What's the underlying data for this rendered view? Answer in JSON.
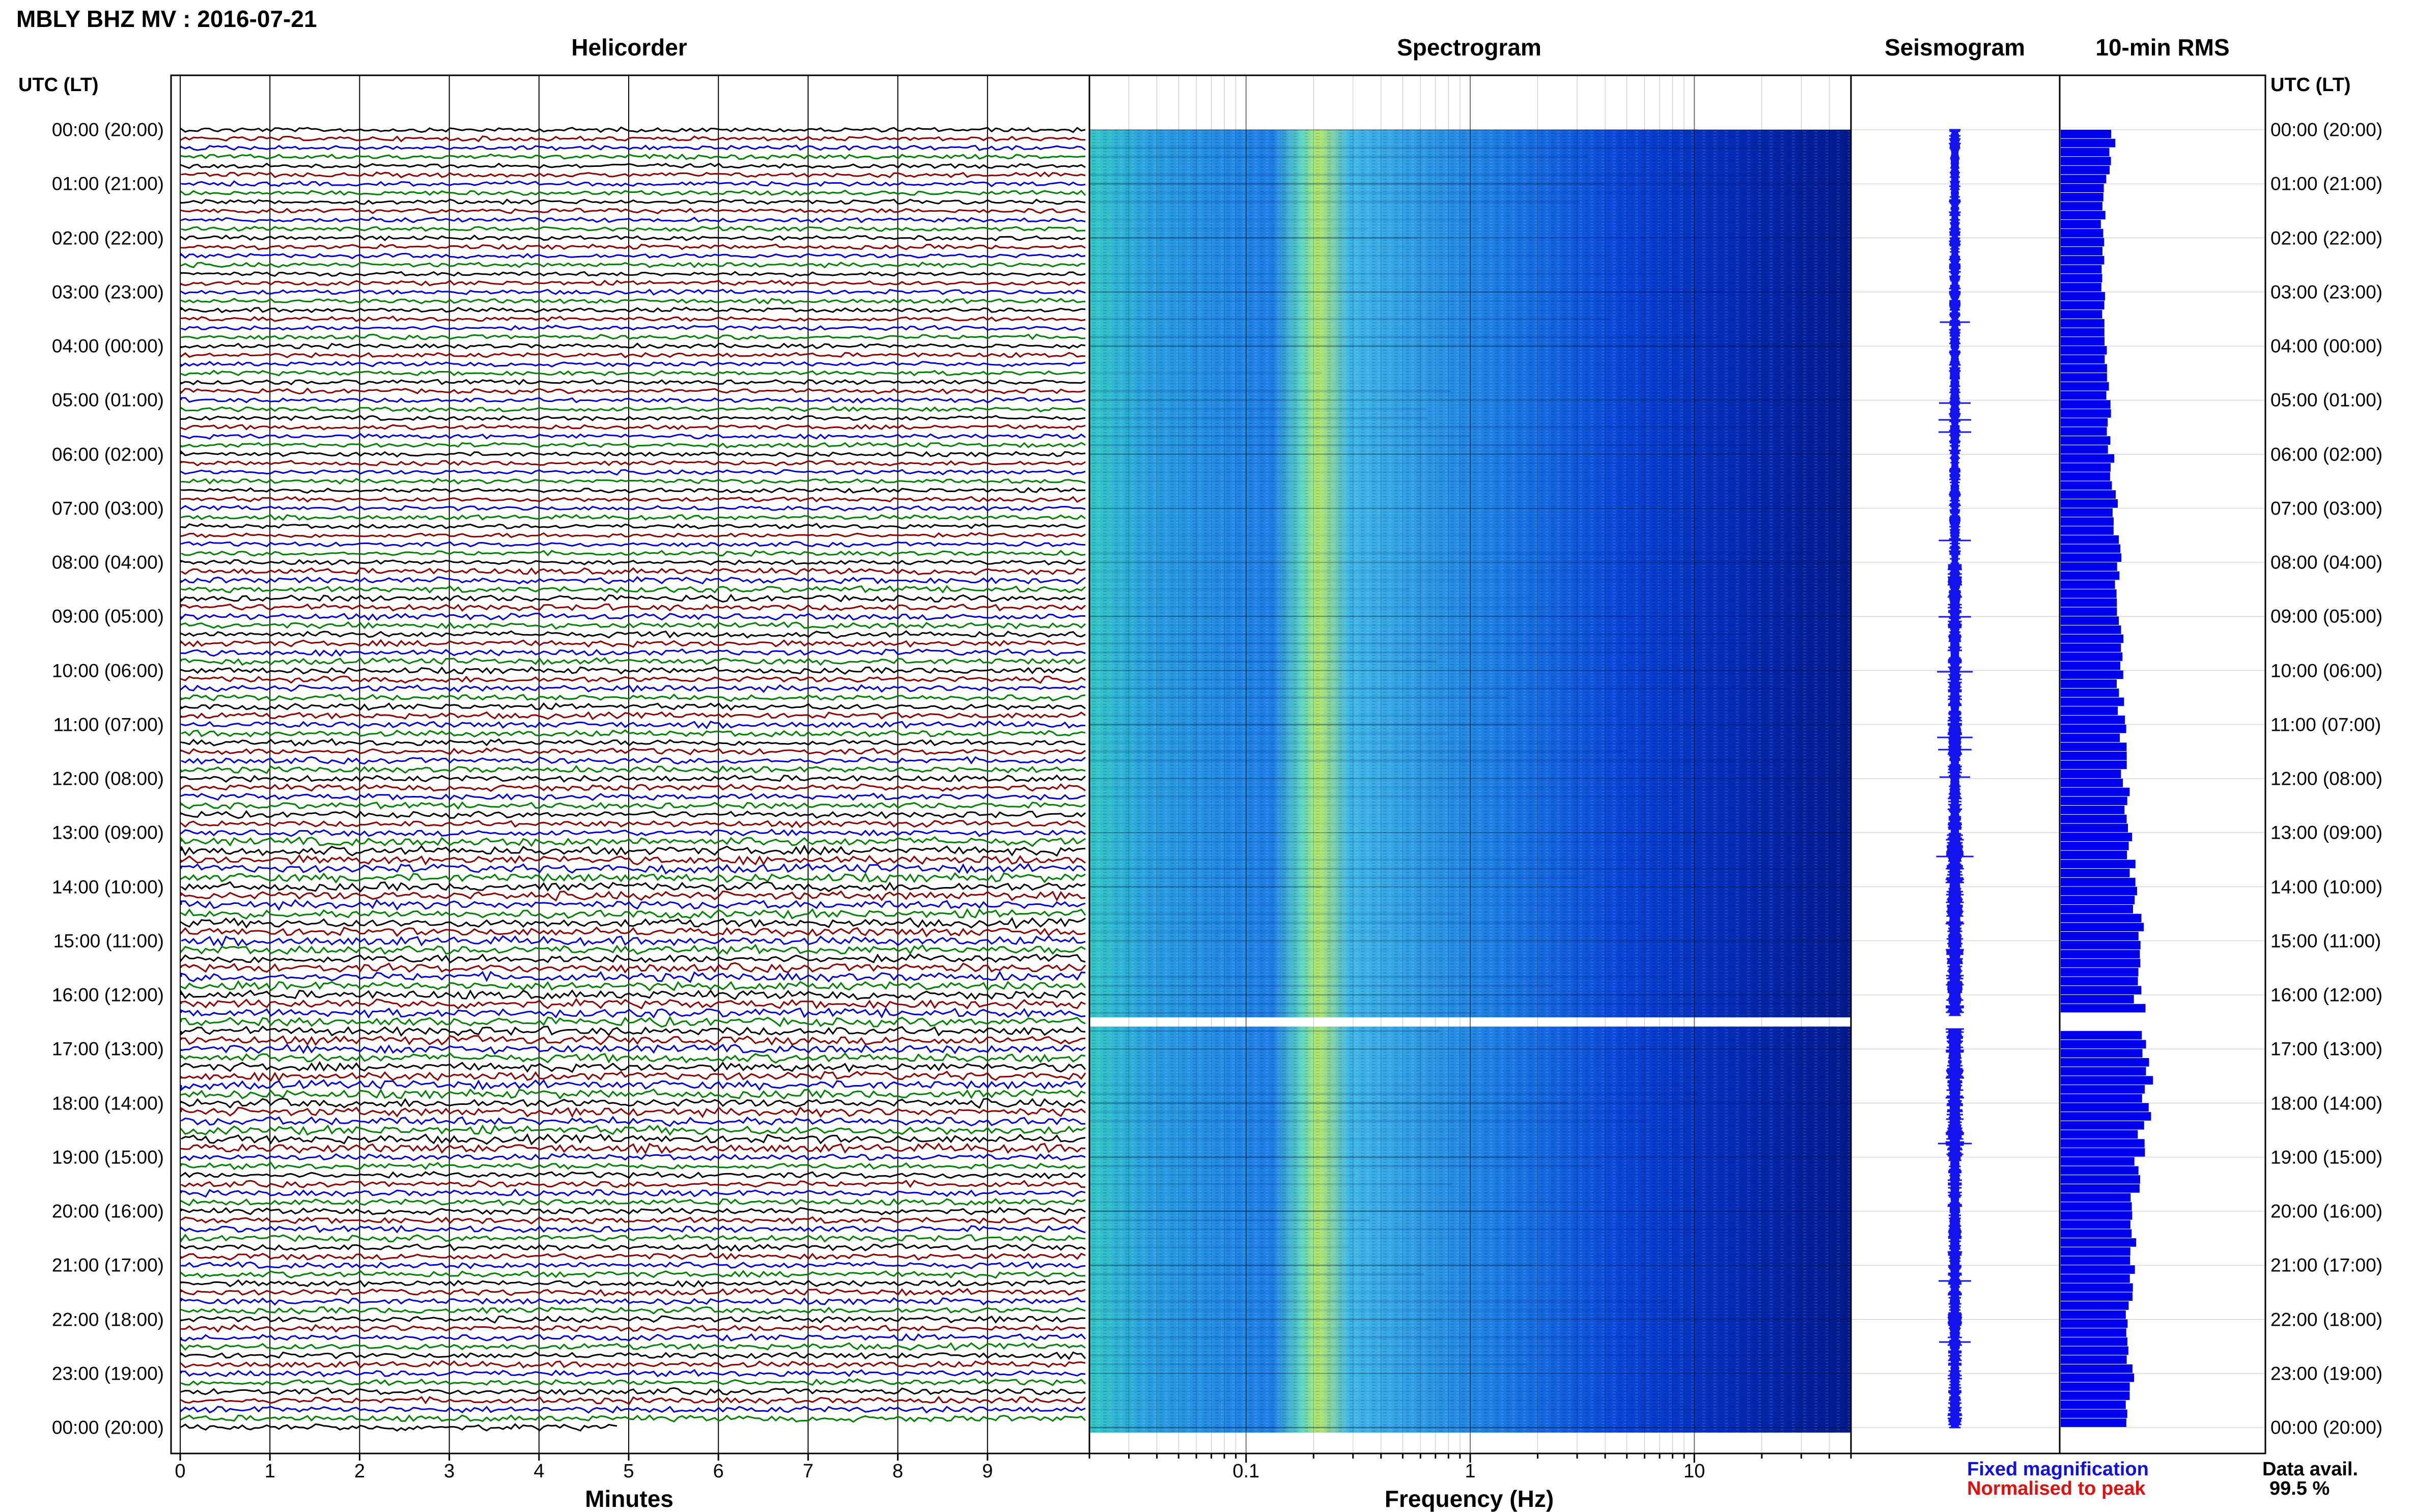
{
  "page": {
    "title": "MBLY BHZ MV : 2016-07-21"
  },
  "panels": {
    "helicorder": "Helicorder",
    "spectrogram": "Spectrogram",
    "seismogram": "Seismogram",
    "rms": "10-min RMS"
  },
  "axes": {
    "left_header": "UTC (LT)",
    "right_header": "UTC (LT)",
    "minutes_label": "Minutes",
    "frequency_label": "Frequency (Hz)",
    "minute_ticks": [
      "0",
      "1",
      "2",
      "3",
      "4",
      "5",
      "6",
      "7",
      "8",
      "9"
    ],
    "frequency_ticks": [
      "0.1",
      "1",
      "10"
    ]
  },
  "time_labels": [
    "00:00 (20:00)",
    "01:00 (21:00)",
    "02:00 (22:00)",
    "03:00 (23:00)",
    "04:00 (00:00)",
    "05:00 (01:00)",
    "06:00 (02:00)",
    "07:00 (03:00)",
    "08:00 (04:00)",
    "09:00 (05:00)",
    "10:00 (06:00)",
    "11:00 (07:00)",
    "12:00 (08:00)",
    "13:00 (09:00)",
    "14:00 (10:00)",
    "15:00 (11:00)",
    "16:00 (12:00)",
    "17:00 (13:00)",
    "18:00 (14:00)",
    "19:00 (15:00)",
    "20:00 (16:00)",
    "21:00 (17:00)",
    "22:00 (18:00)",
    "23:00 (19:00)",
    "00:00 (20:00)"
  ],
  "legend": {
    "fixed": "Fixed magnification",
    "normalised": "Normalised to peak",
    "data_avail_label": "Data avail.",
    "data_avail_value": "99.5 %"
  },
  "colors": {
    "fixed": "#1010e0",
    "normalised": "#e01010",
    "trace_cycle": [
      "#000000",
      "#8b0000",
      "#0000cd",
      "#008000"
    ],
    "rms_bar": "#0000ee"
  },
  "chart_data": {
    "type": "heatmap",
    "minutes_range": [
      0,
      10
    ],
    "frequency_range_hz": [
      0.02,
      50
    ],
    "frequency_scale": "log",
    "hours_range": [
      0,
      24
    ],
    "helicorder_rows_per_hour": 6,
    "data_gap_utc": "16:30",
    "rms_relative_by_hour": [
      0.26,
      0.22,
      0.2,
      0.21,
      0.22,
      0.23,
      0.25,
      0.27,
      0.28,
      0.29,
      0.29,
      0.3,
      0.31,
      0.33,
      0.37,
      0.39,
      0.38,
      0.42,
      0.42,
      0.38,
      0.35,
      0.34,
      0.33,
      0.34,
      0.33
    ]
  }
}
